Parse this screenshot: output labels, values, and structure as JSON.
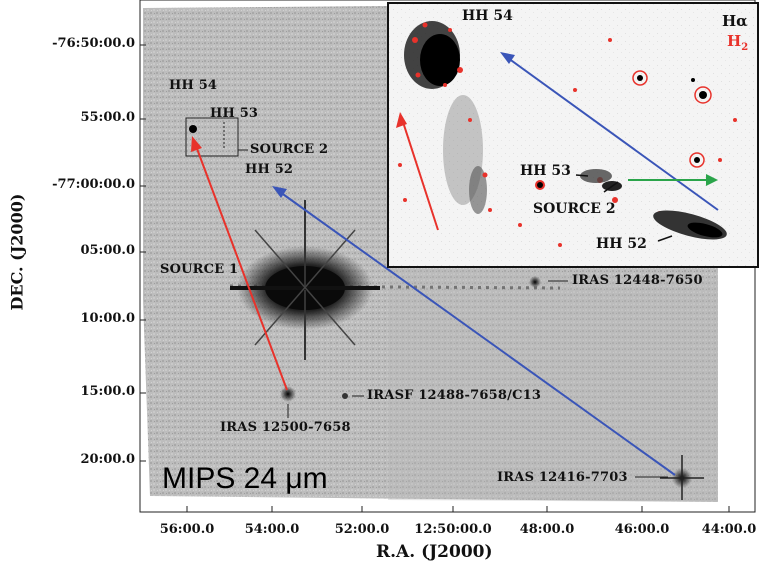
{
  "figure": {
    "panel_label": "MIPS 24 μm",
    "x_axis_title": "R.A. (J2000)",
    "y_axis_title": "DEC. (J2000)",
    "y_ticks": [
      "-76:50:00.0",
      "55:00.0",
      "-77:00:00.0",
      "05:00.0",
      "10:00.0",
      "15:00.0",
      "20:00.0"
    ],
    "x_ticks": [
      "56:00.0",
      "54:00.0",
      "52:00.0",
      "12:50:00.0",
      "48:00.0",
      "46:00.0",
      "44:00.0"
    ]
  },
  "annotations": {
    "hh54": "HH 54",
    "hh53": "HH 53",
    "source2": "SOURCE 2",
    "hh52": "HH 52",
    "source1": "SOURCE 1",
    "iras_12448": "IRAS 12448-7650",
    "irasf": "IRASF 12488-7658/C13",
    "iras_12500": "IRAS 12500-7658",
    "iras_12416": "IRAS 12416-7703"
  },
  "inset": {
    "hh54": "HH 54",
    "hh53": "HH 53",
    "source2": "SOURCE 2",
    "hh52": "HH 52",
    "legend_halpha": "Hα",
    "legend_h2": "H",
    "legend_h2_sub": "2"
  },
  "colors": {
    "red_arrow": "#e8322b",
    "blue_arrow": "#3a55b8",
    "green_arrow": "#2aa44a",
    "h2_emission": "#e8322b"
  }
}
